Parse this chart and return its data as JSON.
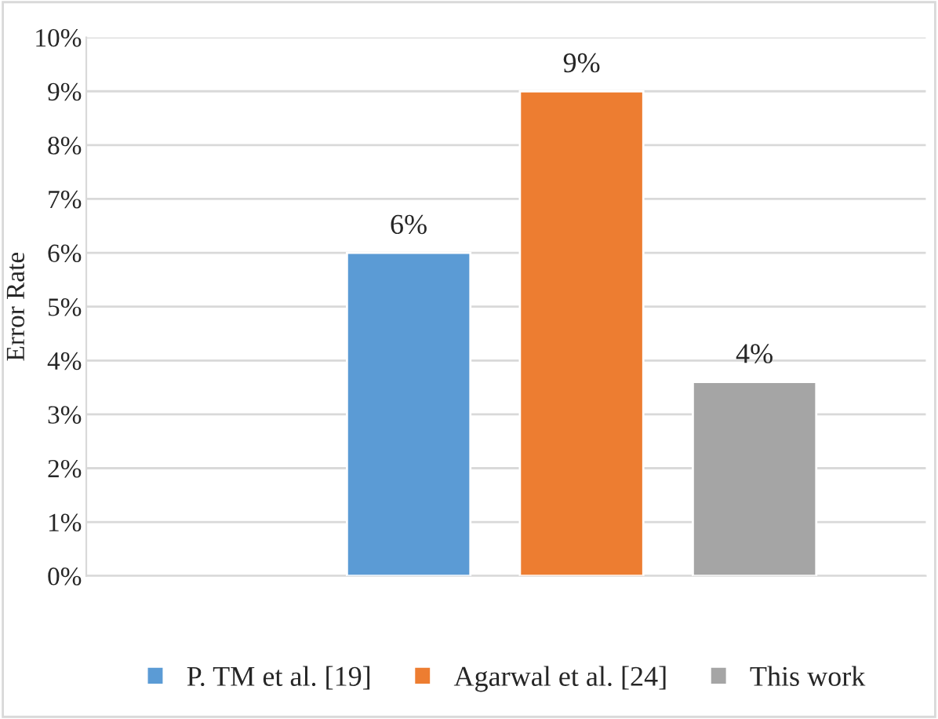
{
  "chart_data": {
    "type": "bar",
    "ylabel": "Error Rate",
    "categories": [
      null
    ],
    "series": [
      {
        "name": "P. TM et al. [19]",
        "color": "#5b9bd5",
        "values": [
          6
        ],
        "value_labels": [
          "6%"
        ]
      },
      {
        "name": "Agarwal et al. [24]",
        "color": "#ed7d31",
        "values": [
          9
        ],
        "value_labels": [
          "9%"
        ]
      },
      {
        "name": "This work",
        "color": "#a5a5a5",
        "values": [
          3.6
        ],
        "value_labels": [
          "4%"
        ]
      }
    ],
    "ylim": [
      0,
      10
    ],
    "yticks": [
      {
        "value": 0,
        "label": "0%"
      },
      {
        "value": 1,
        "label": "1%"
      },
      {
        "value": 2,
        "label": "2%"
      },
      {
        "value": 3,
        "label": "3%"
      },
      {
        "value": 4,
        "label": "4%"
      },
      {
        "value": 5,
        "label": "5%"
      },
      {
        "value": 6,
        "label": "6%"
      },
      {
        "value": 7,
        "label": "7%"
      },
      {
        "value": 8,
        "label": "8%"
      },
      {
        "value": 9,
        "label": "9%"
      },
      {
        "value": 10,
        "label": "10%"
      }
    ],
    "grid": "y",
    "legend": "bottom"
  }
}
